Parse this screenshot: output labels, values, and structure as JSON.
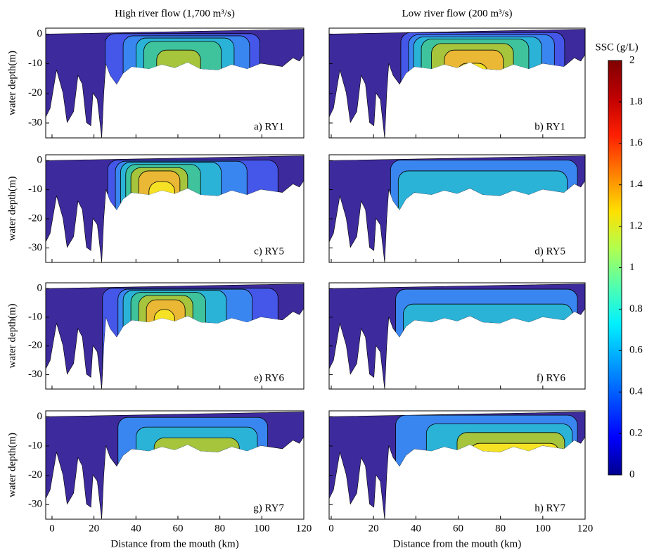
{
  "chart_data": [
    {
      "type": "section",
      "title": "High river flow (1,700 m³/s)",
      "label": "a) RY1",
      "ylabel": "water depth(m)",
      "xlim": [
        -3,
        120
      ],
      "ylim": [
        -35,
        2
      ],
      "xticks": [
        0,
        20,
        40,
        60,
        80,
        100,
        120
      ],
      "yticks": [
        -30,
        -20,
        -10,
        0
      ]
    },
    {
      "type": "section",
      "title": "Low river flow (200 m³/s)",
      "label": "b) RY1",
      "xlim": [
        -1,
        120
      ],
      "ylim": [
        -35,
        2
      ],
      "xticks": [
        0,
        20,
        40,
        60,
        80,
        100,
        120
      ],
      "yticks": [
        -30,
        -20,
        -10,
        0
      ]
    },
    {
      "type": "section",
      "label": "c) RY5",
      "ylabel": "water depth(m)",
      "xlim": [
        -3,
        120
      ],
      "ylim": [
        -35,
        2
      ],
      "xticks": [
        0,
        20,
        40,
        60,
        80,
        100,
        120
      ],
      "yticks": [
        -30,
        -20,
        -10,
        0
      ]
    },
    {
      "type": "section",
      "label": "d) RY5",
      "xlim": [
        -1,
        120
      ],
      "ylim": [
        -35,
        2
      ],
      "xticks": [
        0,
        20,
        40,
        60,
        80,
        100,
        120
      ],
      "yticks": [
        -30,
        -20,
        -10,
        0
      ]
    },
    {
      "type": "section",
      "label": "e) RY6",
      "ylabel": "water depth(m)",
      "xlim": [
        -3,
        120
      ],
      "ylim": [
        -35,
        2
      ],
      "xticks": [
        0,
        20,
        40,
        60,
        80,
        100,
        120
      ],
      "yticks": [
        -30,
        -20,
        -10,
        0
      ]
    },
    {
      "type": "section",
      "label": "f) RY6",
      "xlim": [
        -1,
        120
      ],
      "ylim": [
        -35,
        2
      ],
      "xticks": [
        0,
        20,
        40,
        60,
        80,
        100,
        120
      ],
      "yticks": [
        -30,
        -20,
        -10,
        0
      ]
    },
    {
      "type": "section",
      "label": "g) RY7",
      "ylabel": "water depth(m)",
      "xlabel": "Distance from the mouth (km)",
      "xlim": [
        -3,
        120
      ],
      "ylim": [
        -35,
        2
      ],
      "xticks": [
        0,
        20,
        40,
        60,
        80,
        100,
        120
      ],
      "yticks": [
        -30,
        -20,
        -10,
        0
      ]
    },
    {
      "type": "section",
      "label": "h) RY7",
      "xlabel": "Distance from the mouth (km)",
      "xlim": [
        -1,
        120
      ],
      "ylim": [
        -35,
        2
      ],
      "xticks": [
        0,
        20,
        40,
        60,
        80,
        100,
        120
      ],
      "yticks": [
        -30,
        -20,
        -10,
        0
      ]
    },
    {
      "type": "colorbar",
      "title": "SSC (g/L)",
      "ylim": [
        0,
        2
      ],
      "yticks": [
        0,
        0.2,
        0.4,
        0.6,
        0.8,
        1,
        1.2,
        1.4,
        1.6,
        1.8,
        2
      ],
      "colormap": [
        "#00008f",
        "#0000ff",
        "#0050ff",
        "#00a0ff",
        "#00f0ff",
        "#50ffaf",
        "#b0ff50",
        "#ffe000",
        "#ff8000",
        "#ff2000",
        "#c00000",
        "#800000"
      ]
    }
  ]
}
